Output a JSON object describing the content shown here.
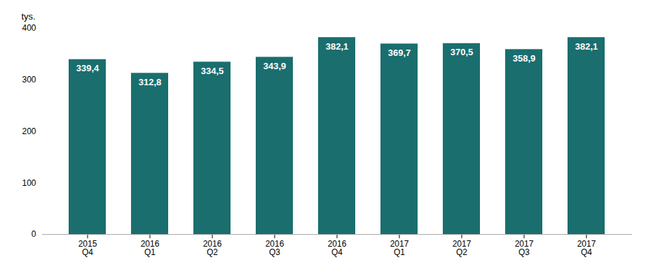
{
  "chart_data": {
    "type": "bar",
    "ylabel": "tys.",
    "categories": [
      "2015\nQ4",
      "2016\nQ1",
      "2016\nQ2",
      "2016\nQ3",
      "2016\nQ4",
      "2017\nQ1",
      "2017\nQ2",
      "2017\nQ3",
      "2017\nQ4"
    ],
    "values": [
      339.4,
      312.8,
      334.5,
      343.9,
      382.1,
      369.7,
      370.5,
      358.9,
      382.1
    ],
    "value_labels": [
      "339,4",
      "312,8",
      "334,5",
      "343,9",
      "382,1",
      "369,7",
      "370,5",
      "358,9",
      "382,1"
    ],
    "data_labels": true,
    "color": "#1a6e6e",
    "ylim": [
      0,
      400
    ],
    "yticks": [
      0,
      100,
      200,
      300,
      400
    ],
    "grid": false
  }
}
